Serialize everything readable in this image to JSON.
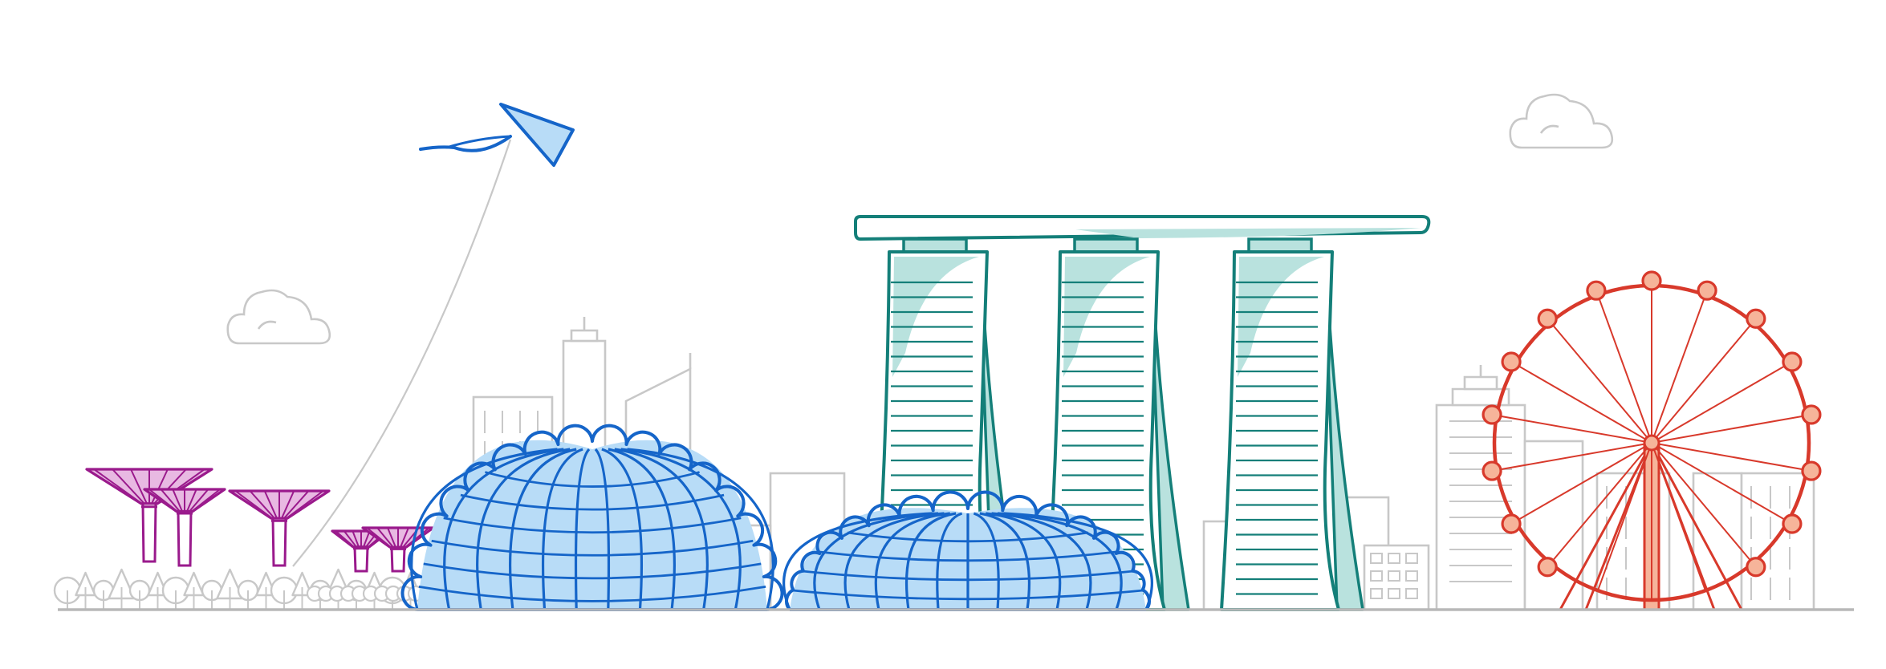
{
  "illustration": {
    "subject": "singapore-skyline",
    "colors": {
      "background": "#ffffff",
      "gray_outline": "#c8c8c8",
      "ground": "#b8b8b8",
      "teal": "#147f79",
      "teal_light": "#b9e2de",
      "blue": "#1565c9",
      "blue_light": "#b8dcf7",
      "magenta": "#9a1a8c",
      "magenta_light": "#e8b9e2",
      "red": "#d8392b",
      "red_light": "#f6b49a"
    },
    "icons": [
      "cloud-left-icon",
      "cloud-right-icon",
      "kite-icon",
      "supertree-grove-icon",
      "flower-dome-icon",
      "cloud-forest-dome-icon",
      "marina-bay-sands-icon",
      "singapore-flyer-icon"
    ]
  }
}
